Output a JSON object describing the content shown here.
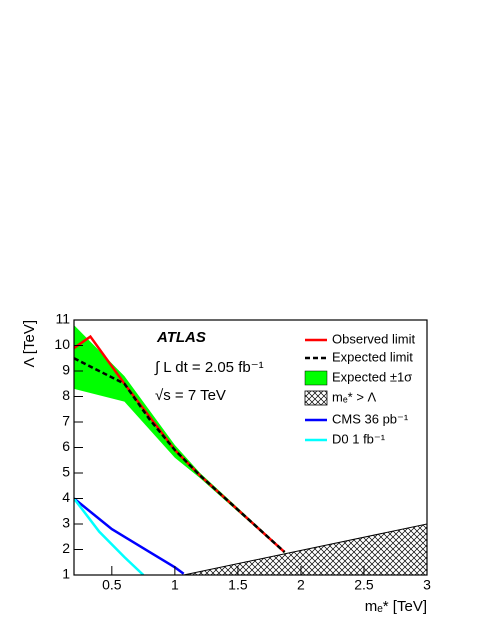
{
  "chart_data": {
    "type": "line",
    "xlabel": "mₑ* [TeV]",
    "ylabel": "Λ [TeV]",
    "annotations": [
      "ATLAS",
      "∫ L dt = 2.05 fb⁻¹",
      "√s = 7 TeV"
    ],
    "xlim": [
      0.2,
      3
    ],
    "ylim": [
      1,
      11
    ],
    "xticks": [
      0.5,
      1,
      1.5,
      2,
      2.5,
      3
    ],
    "yticks": [
      1,
      2,
      3,
      4,
      5,
      6,
      7,
      8,
      9,
      10,
      11
    ],
    "band": {
      "name": "Expected ±1σ",
      "color": "#00ff00",
      "x": [
        0.2,
        0.6,
        1.0,
        1.2,
        1.87
      ],
      "upper": [
        10.8,
        8.8,
        6.1,
        5.0,
        1.95
      ],
      "lower": [
        8.3,
        7.8,
        5.6,
        4.8,
        1.85
      ]
    },
    "excluded": {
      "name": "mₑ* > Λ",
      "color": "#000000",
      "x": [
        1.07,
        3
      ],
      "values": [
        1,
        3
      ]
    },
    "series": [
      {
        "name": "Observed limit",
        "color": "#ff0000",
        "dashed": false,
        "x": [
          0.2,
          0.33,
          0.6,
          1.0,
          1.2,
          1.87
        ],
        "values": [
          9.9,
          10.35,
          8.5,
          5.9,
          4.9,
          1.9
        ]
      },
      {
        "name": "Expected limit",
        "color": "#000000",
        "dashed": true,
        "x": [
          0.2,
          0.4,
          0.6,
          0.8,
          1.0,
          1.2,
          1.87
        ],
        "values": [
          9.5,
          9.0,
          8.5,
          7.1,
          5.9,
          4.9,
          1.9
        ]
      },
      {
        "name": "CMS 36 pb⁻¹",
        "color": "#0000ff",
        "dashed": false,
        "x": [
          0.2,
          0.5,
          0.8,
          1.0,
          1.07
        ],
        "values": [
          4.0,
          2.8,
          1.9,
          1.3,
          1.05
        ]
      },
      {
        "name": "D0 1 fb⁻¹",
        "color": "#00ffff",
        "dashed": false,
        "x": [
          0.2,
          0.4,
          0.6,
          0.75
        ],
        "values": [
          4.0,
          2.7,
          1.7,
          1.0
        ]
      }
    ]
  }
}
